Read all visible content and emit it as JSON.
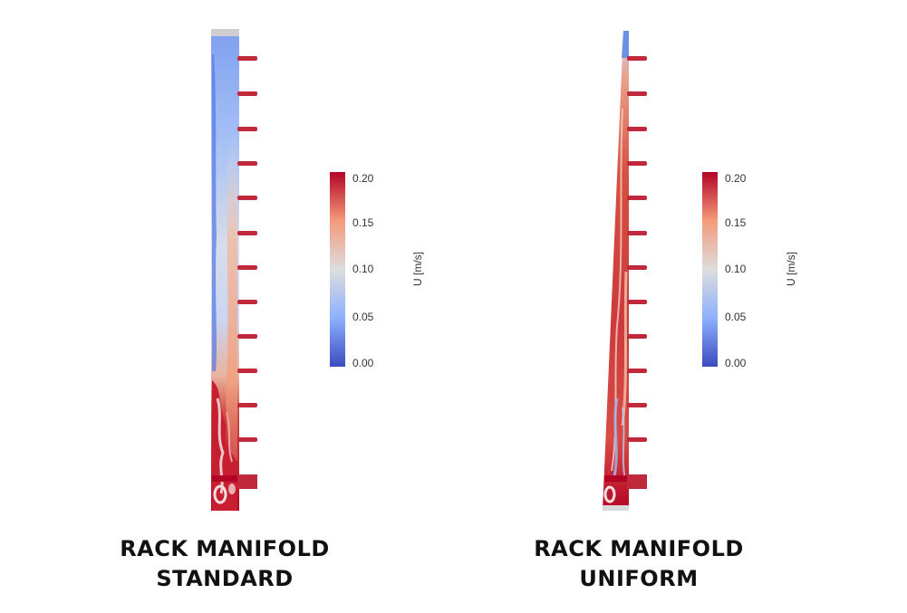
{
  "panels": [
    {
      "caption_line1": "RACK MANIFOLD",
      "caption_line2": "STANDARD",
      "colorbar": {
        "ticks": [
          "0.20",
          "0.15",
          "0.10",
          "0.05",
          "0.00"
        ],
        "unit": "U [m/s]"
      }
    },
    {
      "caption_line1": "RACK MANIFOLD",
      "caption_line2": "UNIFORM",
      "colorbar": {
        "ticks": [
          "0.20",
          "0.15",
          "0.10",
          "0.05",
          "0.00"
        ],
        "unit": "U [m/s]"
      }
    }
  ],
  "colors": {
    "low": "#3b4cc0",
    "mid": "#dddddd",
    "high": "#b40426",
    "outlet": "#c0283c"
  }
}
